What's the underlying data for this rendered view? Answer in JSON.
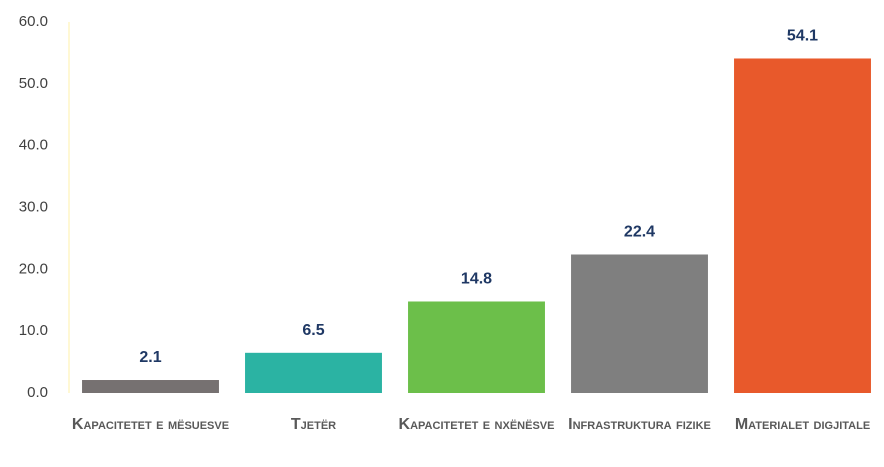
{
  "chart_data": {
    "type": "bar",
    "categories": [
      "Kapacitetet e mësuesve",
      "Tjetër",
      "Kapacitetet e nxënësve",
      "Infrastruktura fizike",
      "Materialet digjitale"
    ],
    "values": [
      2.1,
      6.5,
      14.8,
      22.4,
      54.1
    ],
    "colors": [
      "#767171",
      "#2bb3a3",
      "#6cbf4a",
      "#7f7f7f",
      "#e8592b"
    ],
    "ylim": [
      0,
      60
    ],
    "yticks": [
      {
        "value": 0,
        "label": "0.0"
      },
      {
        "value": 10,
        "label": "10.0"
      },
      {
        "value": 20,
        "label": "20.0"
      },
      {
        "value": 30,
        "label": "30.0"
      },
      {
        "value": 40,
        "label": "40.0"
      },
      {
        "value": 50,
        "label": "50.0"
      },
      {
        "value": 60,
        "label": "60.0"
      }
    ],
    "grid": false
  }
}
